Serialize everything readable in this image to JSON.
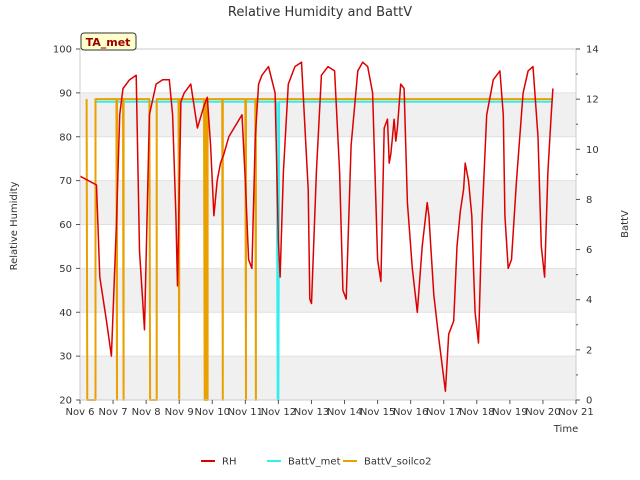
{
  "chart_data": {
    "type": "line",
    "title": "Relative Humidity and BattV",
    "xlabel": "Time",
    "ylabel": "Relative Humidity",
    "y2label": "BattV",
    "station_badge": "TA_met",
    "xlim": [
      6,
      21
    ],
    "ylim": [
      20,
      100
    ],
    "y2lim": [
      0,
      14
    ],
    "x_ticks": [
      6,
      7,
      8,
      9,
      10,
      11,
      12,
      13,
      14,
      15,
      16,
      17,
      18,
      19,
      20,
      21
    ],
    "x_tick_labels": [
      "Nov 6",
      "Nov 7",
      "Nov 8",
      "Nov 9",
      "Nov 10",
      "Nov 11",
      "Nov 12",
      "Nov 13",
      "Nov 14",
      "Nov 15",
      "Nov 16",
      "Nov 17",
      "Nov 18",
      "Nov 19",
      "Nov 20",
      "Nov 21"
    ],
    "y_ticks": [
      20,
      30,
      40,
      50,
      60,
      70,
      80,
      90,
      100
    ],
    "y_tick_labels": [
      "20",
      "30",
      "40",
      "50",
      "60",
      "70",
      "80",
      "90",
      "100"
    ],
    "y2_ticks": [
      0,
      2,
      4,
      6,
      8,
      10,
      12,
      14
    ],
    "y2_tick_labels": [
      "0",
      "2",
      "4",
      "6",
      "8",
      "10",
      "12",
      "14"
    ],
    "grid": "horizontal bands",
    "legend_position": "bottom",
    "series": [
      {
        "name": "RH",
        "axis": "left",
        "color": "#dd0000",
        "x": [
          6.0,
          6.25,
          6.5,
          6.6,
          6.8,
          6.95,
          7.1,
          7.2,
          7.3,
          7.5,
          7.7,
          7.8,
          7.95,
          8.1,
          8.3,
          8.5,
          8.7,
          8.8,
          8.9,
          8.95,
          9.05,
          9.15,
          9.35,
          9.55,
          9.75,
          9.85,
          9.95,
          10.05,
          10.15,
          10.25,
          10.35,
          10.5,
          10.9,
          11.0,
          11.1,
          11.2,
          11.3,
          11.4,
          11.5,
          11.7,
          11.9,
          12.0,
          12.05,
          12.15,
          12.3,
          12.5,
          12.7,
          12.9,
          12.95,
          13.0,
          13.15,
          13.3,
          13.5,
          13.7,
          13.85,
          13.95,
          14.05,
          14.2,
          14.4,
          14.55,
          14.7,
          14.85,
          14.95,
          15.0,
          15.1,
          15.15,
          15.2,
          15.3,
          15.35,
          15.4,
          15.45,
          15.5,
          15.55,
          15.6,
          15.7,
          15.8,
          15.9,
          16.05,
          16.2,
          16.35,
          16.5,
          16.55,
          16.6,
          16.7,
          16.85,
          16.95,
          17.05,
          17.15,
          17.3,
          17.4,
          17.5,
          17.6,
          17.65,
          17.75,
          17.85,
          17.9,
          17.95,
          18.05,
          18.15,
          18.3,
          18.5,
          18.7,
          18.8,
          18.85,
          18.95,
          19.05,
          19.2,
          19.4,
          19.55,
          19.7,
          19.85,
          19.95,
          20.05,
          20.15,
          20.25,
          20.3
        ],
        "y": [
          71,
          70,
          69,
          48,
          38,
          30,
          60,
          85,
          91,
          93,
          94,
          54,
          36,
          85,
          92,
          93,
          93,
          85,
          62,
          46,
          88,
          90,
          92,
          82,
          87,
          89,
          78,
          62,
          70,
          74,
          76,
          80,
          85,
          70,
          52,
          50,
          80,
          92,
          94,
          96,
          90,
          56,
          48,
          72,
          92,
          96,
          97,
          68,
          43,
          42,
          72,
          94,
          96,
          95,
          72,
          45,
          43,
          78,
          95,
          97,
          96,
          90,
          65,
          52,
          47,
          65,
          82,
          84,
          74,
          76,
          80,
          84,
          79,
          82,
          92,
          91,
          65,
          50,
          40,
          55,
          65,
          62,
          56,
          44,
          34,
          28,
          22,
          35,
          38,
          55,
          63,
          68,
          74,
          70,
          62,
          50,
          40,
          33,
          60,
          85,
          93,
          95,
          85,
          62,
          50,
          52,
          70,
          90,
          95,
          96,
          80,
          55,
          48,
          72,
          85,
          91
        ]
      },
      {
        "name": "BattV_met",
        "axis": "right",
        "color": "#33eeee",
        "x": [
          6.45,
          11.95,
          11.98,
          12.0,
          12.02,
          12.05,
          20.3
        ],
        "y": [
          11.9,
          11.9,
          0,
          0,
          11.9,
          11.9,
          11.9
        ]
      },
      {
        "name": "BattV_soilco2",
        "axis": "right",
        "color": "#e8a100",
        "x": [
          6.2,
          6.22,
          6.45,
          6.47,
          6.47,
          7.1,
          7.12,
          7.12,
          7.3,
          7.32,
          7.32,
          8.1,
          8.12,
          8.12,
          8.3,
          8.32,
          8.32,
          8.98,
          9.0,
          9.0,
          9.75,
          9.77,
          9.79,
          9.8,
          9.82,
          9.84,
          9.86,
          9.86,
          10.3,
          10.32,
          10.32,
          11.0,
          11.02,
          11.02,
          11.3,
          11.32,
          11.32,
          12.05,
          20.3
        ],
        "y": [
          12.0,
          0,
          0,
          0,
          12.0,
          12.0,
          0,
          12.0,
          12.0,
          0,
          12.0,
          12.0,
          0,
          0,
          0,
          0,
          12.0,
          12.0,
          0,
          12.0,
          12.0,
          0,
          12.0,
          0,
          12.0,
          0,
          0,
          12.0,
          12.0,
          0,
          12.0,
          12.0,
          0,
          12.0,
          12.0,
          0,
          12.0,
          12.0,
          12.0
        ]
      }
    ]
  }
}
